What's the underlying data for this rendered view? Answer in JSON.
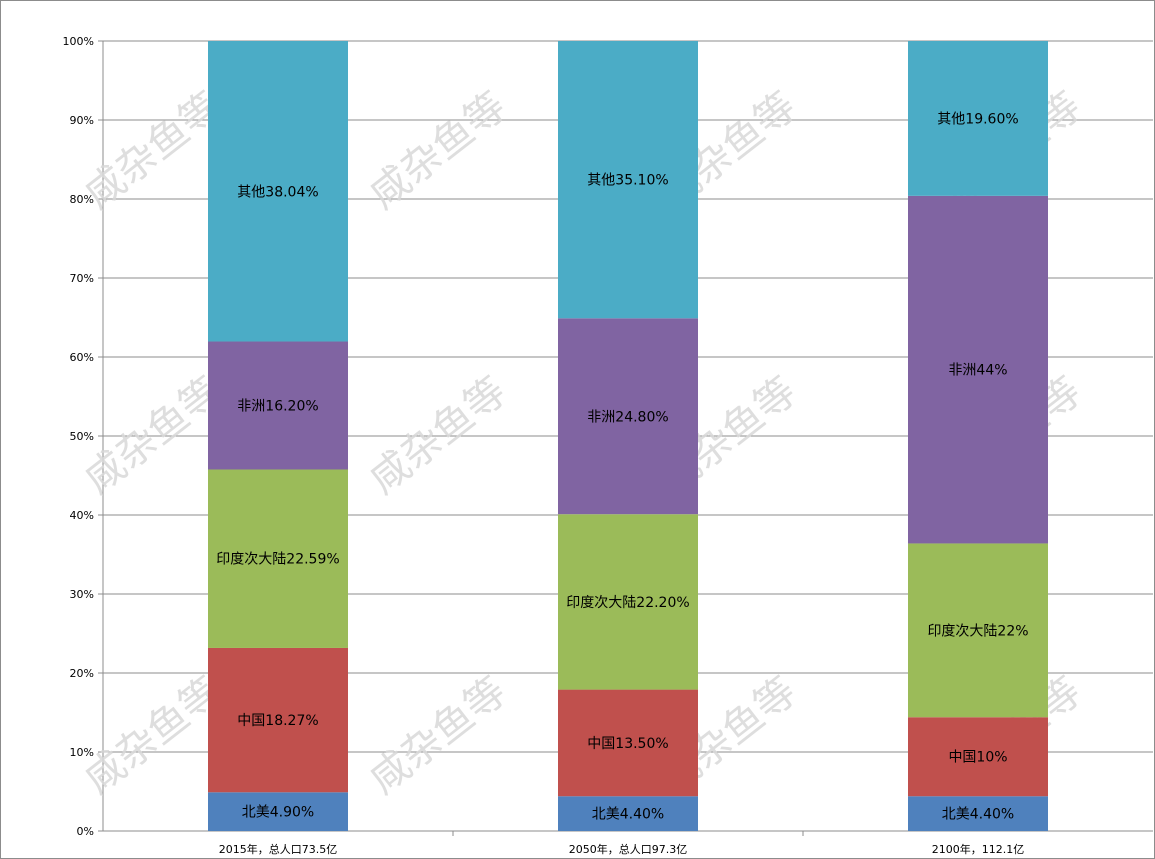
{
  "chart_data": {
    "type": "bar",
    "stacked": "percent",
    "categories": [
      "2015年，总人口73.5亿",
      "2050年，总人口97.3亿",
      "2100年，112.1亿"
    ],
    "ylim": [
      0,
      100
    ],
    "yticks": [
      "0%",
      "10%",
      "20%",
      "30%",
      "40%",
      "50%",
      "60%",
      "70%",
      "80%",
      "90%",
      "100%"
    ],
    "grid": true,
    "series": [
      {
        "color": "#4f81bd",
        "values": [
          4.9,
          4.4,
          4.4
        ],
        "labels": [
          "北美4.90%",
          "北美4.40%",
          "北美4.40%"
        ]
      },
      {
        "color": "#c0504d",
        "values": [
          18.27,
          13.5,
          10
        ],
        "labels": [
          "中国18.27%",
          "中国13.50%",
          "中国10%"
        ]
      },
      {
        "color": "#9bbb59",
        "values": [
          22.59,
          22.2,
          22
        ],
        "labels": [
          "印度次大陆22.59%",
          "印度次大陆22.20%",
          "印度次大陆22%"
        ]
      },
      {
        "color": "#8064a2",
        "values": [
          16.2,
          24.8,
          44
        ],
        "labels": [
          "非洲16.20%",
          "非洲24.80%",
          "非洲44%"
        ]
      },
      {
        "color": "#4bacc6",
        "values": [
          38.04,
          35.1,
          19.6
        ],
        "labels": [
          "其他38.04%",
          "其他35.10%",
          "其他19.60%"
        ]
      }
    ]
  },
  "watermark": "咸杂鱼等"
}
